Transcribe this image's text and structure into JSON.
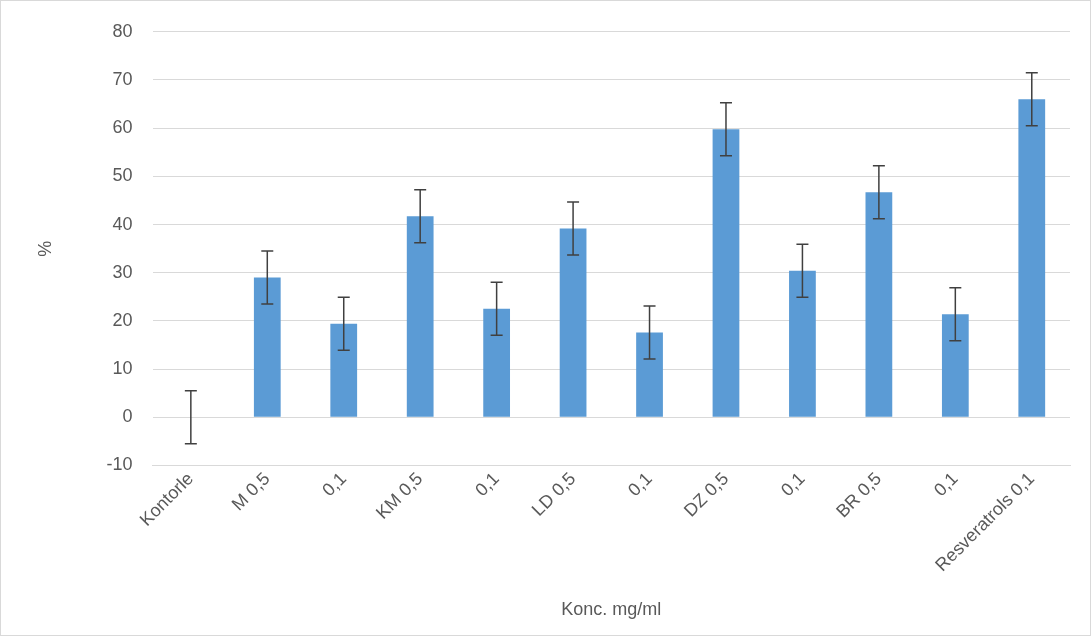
{
  "chart_data": {
    "type": "bar",
    "xlabel": "Konc. mg/ml",
    "ylabel": "%",
    "categories": [
      "Kontorle",
      "M 0,5",
      "0,1",
      "KM 0,5",
      "0,1",
      "LD 0,5",
      "0,1",
      "DZ 0,5",
      "0,1",
      "BR 0,5",
      "0,1",
      "Resveratrols 0,1"
    ],
    "values": [
      0,
      29,
      19.4,
      41.7,
      22.5,
      39.2,
      17.6,
      59.8,
      30.4,
      46.7,
      21.4,
      66
    ],
    "errors": [
      5.5,
      5.5,
      5.5,
      5.5,
      5.5,
      5.5,
      5.5,
      5.5,
      5.5,
      5.5,
      5.5,
      5.5
    ],
    "color": "#5b9bd5",
    "ylim": [
      -10,
      80
    ],
    "yticks": [
      -10,
      0,
      10,
      20,
      30,
      40,
      50,
      60,
      70,
      80
    ],
    "grid": "y"
  }
}
